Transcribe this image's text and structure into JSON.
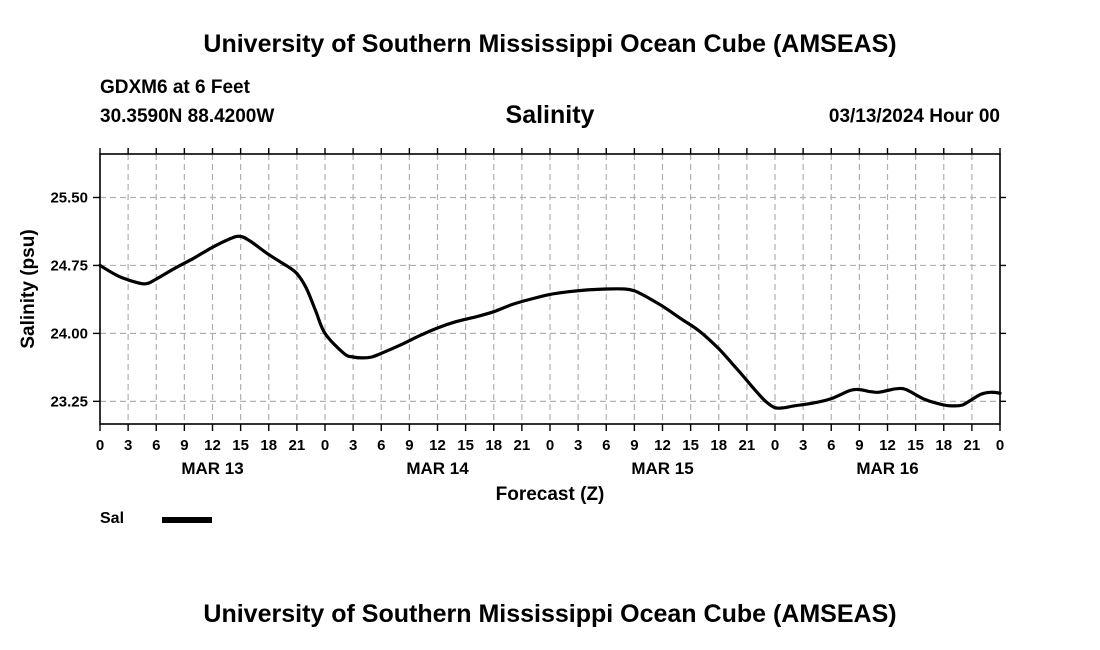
{
  "header": {
    "top_title": "University of Southern Mississippi Ocean Cube (AMSEAS)",
    "station": "GDXM6 at 6 Feet",
    "coords": "30.3590N  88.4200W",
    "plot_title": "Salinity",
    "datetime": "03/13/2024 Hour 00",
    "bottom_title": "University of Southern Mississippi Ocean Cube (AMSEAS)"
  },
  "legend": {
    "label": "Sal"
  },
  "colors": {
    "line": "#000000",
    "grid": "#b0b0b0",
    "background": "#ffffff"
  },
  "chart_data": {
    "type": "line",
    "title": "Salinity",
    "xlabel": "Forecast (Z)",
    "ylabel": "Salinity (psu)",
    "xlim": [
      0,
      96
    ],
    "ylim": [
      23.0,
      25.98
    ],
    "grid": true,
    "y_ticks": [
      23.25,
      24.0,
      24.75,
      25.5
    ],
    "y_tick_labels": [
      "23.25",
      "24.00",
      "24.75",
      "25.50"
    ],
    "x_ticks": [
      0,
      3,
      6,
      9,
      12,
      15,
      18,
      21,
      24,
      27,
      30,
      33,
      36,
      39,
      42,
      45,
      48,
      51,
      54,
      57,
      60,
      63,
      66,
      69,
      72,
      75,
      78,
      81,
      84,
      87,
      90,
      93,
      96
    ],
    "x_tick_labels": [
      "0",
      "3",
      "6",
      "9",
      "12",
      "15",
      "18",
      "21",
      "0",
      "3",
      "6",
      "9",
      "12",
      "15",
      "18",
      "21",
      "0",
      "3",
      "6",
      "9",
      "12",
      "15",
      "18",
      "21",
      "0",
      "3",
      "6",
      "9",
      "12",
      "15",
      "18",
      "21",
      "0"
    ],
    "day_labels": [
      {
        "x": 12,
        "label": "MAR 13"
      },
      {
        "x": 36,
        "label": "MAR 14"
      },
      {
        "x": 60,
        "label": "MAR 15"
      },
      {
        "x": 84,
        "label": "MAR 16"
      }
    ],
    "series": [
      {
        "name": "Sal",
        "x": [
          0,
          2,
          4,
          5,
          6,
          8,
          10,
          12,
          14,
          15,
          16,
          18,
          20,
          21,
          22,
          23,
          24,
          26,
          27,
          28,
          29,
          30,
          32,
          34,
          36,
          38,
          40,
          42,
          44,
          46,
          48,
          50,
          52,
          54,
          56,
          57,
          58,
          60,
          62,
          64,
          66,
          68,
          69,
          70,
          71,
          72,
          73,
          74,
          76,
          78,
          80,
          81,
          82,
          83,
          84,
          85,
          86,
          88,
          90,
          91,
          92,
          93,
          94,
          95,
          96
        ],
        "values": [
          24.75,
          24.63,
          24.56,
          24.55,
          24.6,
          24.72,
          24.83,
          24.95,
          25.05,
          25.07,
          25.02,
          24.87,
          24.74,
          24.66,
          24.5,
          24.25,
          24.0,
          23.78,
          23.74,
          23.73,
          23.74,
          23.78,
          23.87,
          23.97,
          24.06,
          24.13,
          24.18,
          24.24,
          24.32,
          24.38,
          24.43,
          24.46,
          24.48,
          24.49,
          24.49,
          24.47,
          24.42,
          24.3,
          24.16,
          24.02,
          23.83,
          23.6,
          23.48,
          23.36,
          23.25,
          23.18,
          23.18,
          23.2,
          23.23,
          23.28,
          23.37,
          23.38,
          23.36,
          23.35,
          23.37,
          23.39,
          23.38,
          23.27,
          23.21,
          23.2,
          23.21,
          23.27,
          23.33,
          23.35,
          23.34
        ]
      }
    ]
  }
}
